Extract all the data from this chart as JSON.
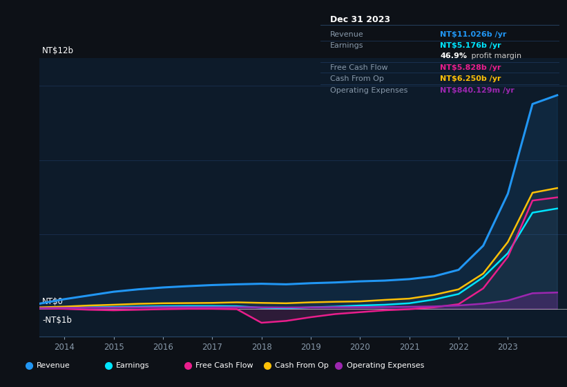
{
  "background_color": "#0d1117",
  "plot_bg_color": "#0d1b2a",
  "ylabel_top": "NT$12b",
  "ylabel_zero": "NT$0",
  "ylabel_neg": "-NT$1b",
  "x_years": [
    2013.5,
    2014.0,
    2014.5,
    2015.0,
    2015.5,
    2016.0,
    2016.5,
    2017.0,
    2017.5,
    2018.0,
    2018.5,
    2019.0,
    2019.5,
    2020.0,
    2020.5,
    2021.0,
    2021.5,
    2022.0,
    2022.5,
    2023.0,
    2023.5,
    2024.0
  ],
  "revenue": [
    0.28,
    0.52,
    0.72,
    0.92,
    1.05,
    1.15,
    1.22,
    1.28,
    1.32,
    1.35,
    1.32,
    1.38,
    1.42,
    1.48,
    1.52,
    1.6,
    1.75,
    2.1,
    3.4,
    6.2,
    11.026,
    11.5
  ],
  "earnings": [
    0.03,
    0.05,
    0.08,
    0.1,
    0.12,
    0.14,
    0.15,
    0.15,
    0.14,
    0.06,
    0.03,
    0.08,
    0.12,
    0.18,
    0.22,
    0.3,
    0.5,
    0.8,
    1.7,
    3.0,
    5.176,
    5.4
  ],
  "free_cash_flow": [
    0.02,
    0.0,
    -0.05,
    -0.08,
    -0.05,
    -0.02,
    0.0,
    0.0,
    -0.02,
    -0.75,
    -0.65,
    -0.45,
    -0.28,
    -0.18,
    -0.08,
    -0.02,
    0.08,
    0.25,
    1.1,
    2.8,
    5.828,
    6.0
  ],
  "cash_from_op": [
    0.08,
    0.12,
    0.18,
    0.22,
    0.27,
    0.3,
    0.31,
    0.32,
    0.35,
    0.32,
    0.3,
    0.35,
    0.38,
    0.4,
    0.48,
    0.55,
    0.75,
    1.05,
    1.9,
    3.6,
    6.25,
    6.5
  ],
  "operating_expenses": [
    0.04,
    0.05,
    0.06,
    0.07,
    0.08,
    0.09,
    0.09,
    0.09,
    0.09,
    0.08,
    0.07,
    0.08,
    0.09,
    0.09,
    0.1,
    0.11,
    0.13,
    0.18,
    0.28,
    0.45,
    0.84,
    0.88
  ],
  "revenue_color": "#2196f3",
  "earnings_color": "#00e5ff",
  "free_cash_flow_color": "#e91e8c",
  "cash_from_op_color": "#ffc107",
  "operating_expenses_color": "#9c27b0",
  "grid_color": "#1a3050",
  "zero_line_color": "#cccccc",
  "ylim_min": -1.5,
  "ylim_max": 13.5,
  "xlim_min": 2013.5,
  "xlim_max": 2024.2,
  "x_ticks": [
    2014,
    2015,
    2016,
    2017,
    2018,
    2019,
    2020,
    2021,
    2022,
    2023
  ],
  "info_box_title": "Dec 31 2023",
  "info_rows": [
    {
      "label": "Revenue",
      "value": "NT$11.026b /yr",
      "value_color": "#2196f3",
      "sep": true
    },
    {
      "label": "Earnings",
      "value": "NT$5.176b /yr",
      "value_color": "#00e5ff",
      "sep": false
    },
    {
      "label": "",
      "value": "46.9% profit margin",
      "value_color": "#ffffff",
      "sep": true,
      "bold_prefix": "46.9%",
      "suffix": " profit margin"
    },
    {
      "label": "Free Cash Flow",
      "value": "NT$5.828b /yr",
      "value_color": "#e91e8c",
      "sep": true
    },
    {
      "label": "Cash From Op",
      "value": "NT$6.250b /yr",
      "value_color": "#ffc107",
      "sep": true
    },
    {
      "label": "Operating Expenses",
      "value": "NT$840.129m /yr",
      "value_color": "#9c27b0",
      "sep": false
    }
  ],
  "legend_items": [
    {
      "label": "Revenue",
      "color": "#2196f3"
    },
    {
      "label": "Earnings",
      "color": "#00e5ff"
    },
    {
      "label": "Free Cash Flow",
      "color": "#e91e8c"
    },
    {
      "label": "Cash From Op",
      "color": "#ffc107"
    },
    {
      "label": "Operating Expenses",
      "color": "#9c27b0"
    }
  ]
}
